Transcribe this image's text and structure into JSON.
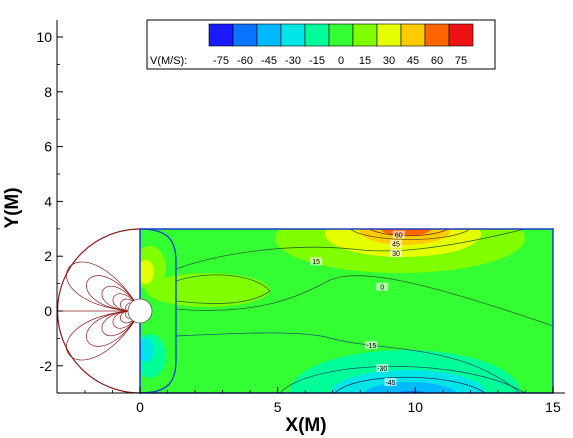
{
  "chart_data": {
    "type": "heatmap",
    "xlabel": "X(M)",
    "ylabel": "Y(M)",
    "xlim": [
      -3.0,
      15.3
    ],
    "ylim": [
      -3.0,
      10.6
    ],
    "x_ticks": [
      0,
      5,
      10,
      15
    ],
    "y_ticks": [
      -2,
      0,
      2,
      4,
      6,
      8,
      10
    ],
    "legend": {
      "title": "V(M/S):",
      "levels": [
        -75,
        -60,
        -45,
        -30,
        -15,
        0,
        15,
        30,
        45,
        60,
        75
      ],
      "colors": [
        "#1a1aff",
        "#0a73ff",
        "#00b9ff",
        "#00e6e6",
        "#00ff99",
        "#33ff33",
        "#80ff00",
        "#e6ff00",
        "#ffcc00",
        "#ff6600",
        "#ee1111"
      ]
    },
    "domain": {
      "rectangle": {
        "x": [
          0,
          15
        ],
        "y": [
          -3,
          3
        ]
      },
      "semicircle": {
        "center": [
          0,
          0
        ],
        "radius": 3
      },
      "cylinder": {
        "center": [
          0,
          0
        ],
        "radius": 0.45
      }
    },
    "contour_labels": [
      {
        "text": "60",
        "x": 9.4,
        "y": 2.75
      },
      {
        "text": "45",
        "x": 9.3,
        "y": 2.42
      },
      {
        "text": "30",
        "x": 9.3,
        "y": 2.08
      },
      {
        "text": "15",
        "x": 6.4,
        "y": 1.78
      },
      {
        "text": "0",
        "x": 8.8,
        "y": 0.85
      },
      {
        "text": "-15",
        "x": 8.4,
        "y": -1.28
      },
      {
        "text": "-30",
        "x": 8.8,
        "y": -2.12
      },
      {
        "text": "-45",
        "x": 9.1,
        "y": -2.63
      }
    ],
    "grid": false
  }
}
